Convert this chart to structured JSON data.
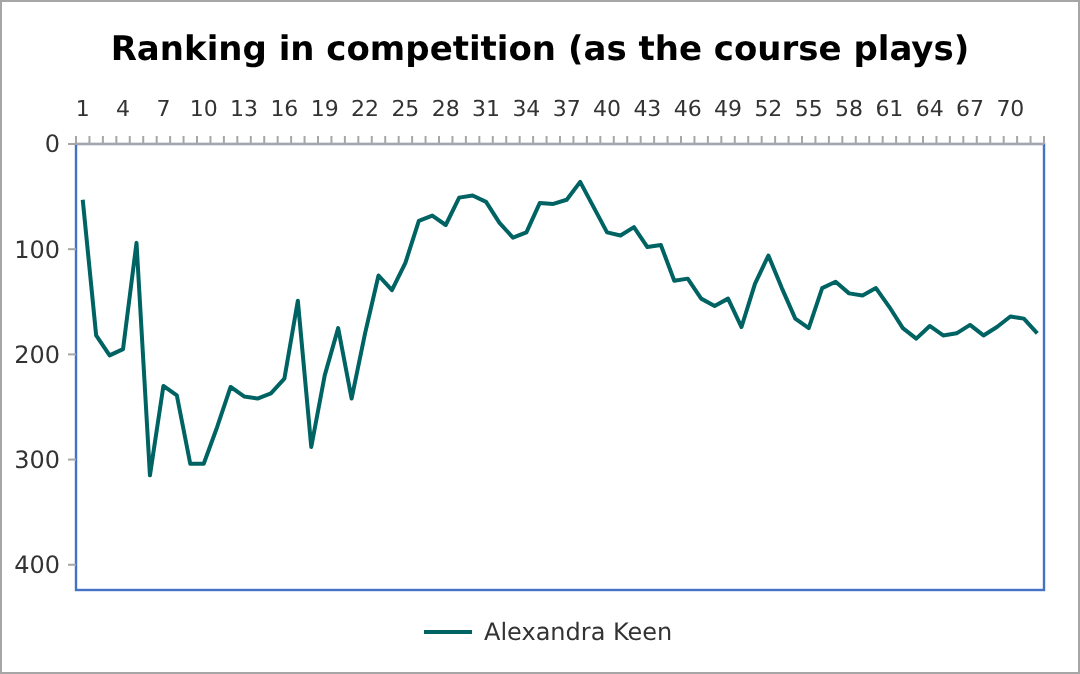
{
  "chart_data": {
    "type": "line",
    "title": "Ranking in competition (as the course plays)",
    "categories": [
      "1",
      null,
      null,
      "4",
      null,
      null,
      "7",
      null,
      null,
      "10",
      null,
      null,
      "13",
      null,
      null,
      "16",
      null,
      null,
      "19",
      null,
      null,
      "22",
      null,
      null,
      "25",
      null,
      null,
      "28",
      null,
      null,
      "31",
      null,
      null,
      "34",
      null,
      null,
      "37",
      null,
      null,
      "40",
      null,
      null,
      "43",
      null,
      null,
      "46",
      null,
      null,
      "49",
      null,
      null,
      "52",
      null,
      null,
      "55",
      null,
      null,
      "58",
      null,
      null,
      "61",
      null,
      null,
      "64",
      null,
      null,
      "67",
      null,
      null,
      "70",
      null,
      null
    ],
    "series": [
      {
        "name": "Alexandra Keen",
        "color": "#006363",
        "values": [
          53,
          182,
          201,
          195,
          94,
          315,
          230,
          239,
          304,
          304,
          269,
          231,
          240,
          242,
          237,
          223,
          149,
          288,
          220,
          175,
          242,
          180,
          125,
          139,
          113,
          73,
          68,
          77,
          51,
          49,
          55,
          75,
          89,
          84,
          56,
          57,
          53,
          36,
          60,
          84,
          87,
          79,
          98,
          96,
          130,
          128,
          147,
          154,
          147,
          174,
          133,
          106,
          137,
          166,
          175,
          137,
          131,
          142,
          144,
          137,
          155,
          175,
          185,
          173,
          182,
          180,
          172,
          182,
          174,
          164,
          166,
          180
        ]
      }
    ],
    "ylim": [
      424,
      0
    ],
    "yticks": [
      0,
      100,
      200,
      300,
      400
    ],
    "grid": false,
    "legend": "bottom",
    "marker": "none",
    "line_style": "solid"
  }
}
